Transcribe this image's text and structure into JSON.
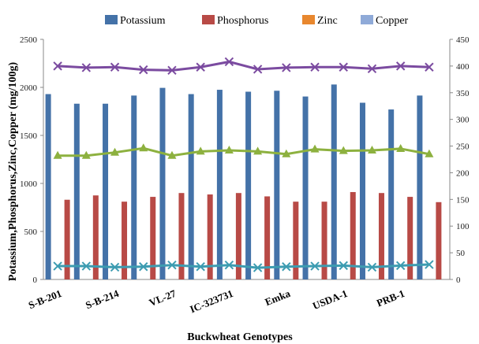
{
  "chart_data": {
    "type": "bar",
    "title": "",
    "xlabel": "Buckwheat Genotypes",
    "ylabel": "Potassium,Phosphorus,Zinc,Copper (mg/100g)",
    "ylim": [
      0,
      2500
    ],
    "y_ticks": [
      "0",
      "500",
      "1000",
      "1500",
      "2000",
      "2500"
    ],
    "y2lim": [
      0,
      450
    ],
    "y2_ticks": [
      "0",
      "50",
      "100",
      "150",
      "200",
      "250",
      "300",
      "350",
      "400",
      "450"
    ],
    "legend_position": "top",
    "grid": false,
    "x_tick_labels": [
      "S-B-201",
      "S-B-214",
      "VL-27",
      "IC-323731",
      "Emka",
      "USDA-1",
      "PRB-1"
    ],
    "x_tick_positions": [
      0,
      2,
      4,
      6,
      8,
      10,
      12
    ],
    "categories_count": 14,
    "series": [
      {
        "name": "Potassium",
        "kind": "bar",
        "axis": "left",
        "color": "#4472A8",
        "values": [
          1930,
          1830,
          1830,
          1915,
          1995,
          1930,
          1975,
          1955,
          1965,
          1905,
          2030,
          1840,
          1770,
          1915
        ]
      },
      {
        "name": "Phosphorus",
        "kind": "bar",
        "axis": "left",
        "color": "#B84A46",
        "values": [
          830,
          875,
          810,
          860,
          900,
          885,
          900,
          865,
          810,
          810,
          910,
          900,
          860,
          805
        ]
      },
      {
        "name": "Zinc",
        "kind": "legend-only",
        "color": "#E8872E",
        "values": []
      },
      {
        "name": "Copper",
        "kind": "legend-only",
        "color": "#8FAAD8",
        "values": []
      },
      {
        "kind": "line",
        "axis": "right",
        "color": "#7B4BA0",
        "marker": "x",
        "values": [
          400,
          397,
          398,
          393,
          392,
          398,
          408,
          394,
          397,
          398,
          398,
          395,
          400,
          398
        ]
      },
      {
        "kind": "line",
        "axis": "right",
        "color": "#8DB13F",
        "marker": "triangle",
        "values": [
          232,
          232,
          238,
          246,
          232,
          240,
          242,
          240,
          235,
          244,
          241,
          242,
          245,
          235
        ]
      },
      {
        "kind": "line",
        "axis": "right",
        "color": "#3D9CB1",
        "marker": "x",
        "values": [
          25,
          25,
          23,
          24,
          27,
          24,
          27,
          22,
          24,
          25,
          26,
          23,
          26,
          28
        ]
      }
    ]
  }
}
